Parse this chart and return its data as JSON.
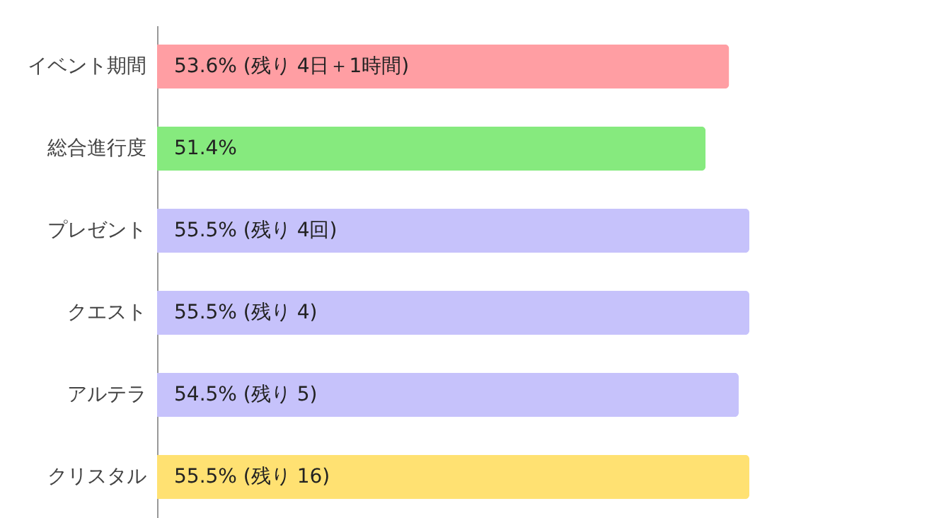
{
  "chart_data": {
    "type": "bar",
    "orientation": "horizontal",
    "categories": [
      "イベント期間",
      "総合進行度",
      "プレゼント",
      "クエスト",
      "アルテラ",
      "クリスタル"
    ],
    "values": [
      53.6,
      51.4,
      55.5,
      55.5,
      54.5,
      55.5
    ],
    "colors": [
      "#ff9ea3",
      "#86ea7e",
      "#c6c2fb",
      "#c6c2fb",
      "#c6c2fb",
      "#ffe172"
    ],
    "value_labels": [
      "53.6%  (残り 4日＋1時間)",
      "51.4%",
      "55.5% (残り 4回)",
      "55.5%  (残り 4)",
      "54.5%  (残り 5)",
      "55.5%  (残り 16)"
    ],
    "xlim": [
      0,
      72.8
    ],
    "grid": false
  }
}
